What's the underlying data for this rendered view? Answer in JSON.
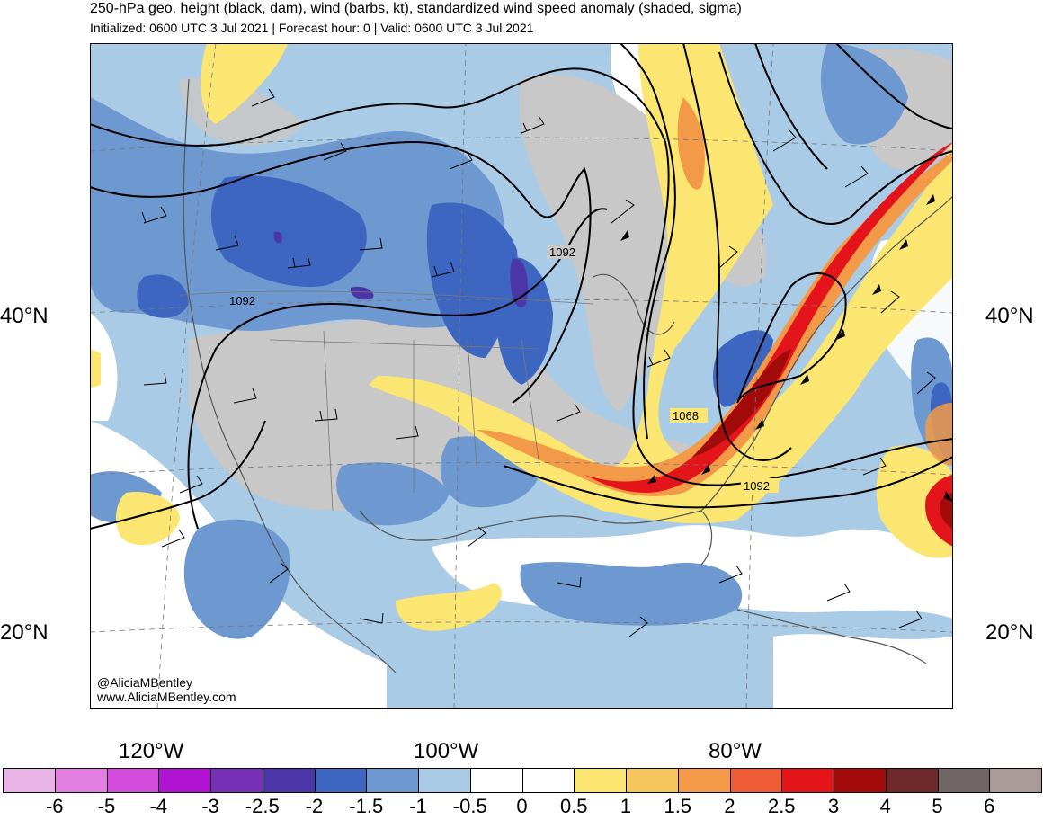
{
  "header": {
    "title": "250-hPa geo. height (black, dam), wind (barbs, kt), standardized wind speed anomaly (shaded, sigma)",
    "subtitle": "Initialized: 0600 UTC 3 Jul 2021 | Forecast hour: 0 | Valid: 0600 UTC 3 Jul 2021"
  },
  "axes": {
    "lat_labels": [
      "40°N",
      "20°N"
    ],
    "lon_labels": [
      "120°W",
      "100°W",
      "80°W"
    ]
  },
  "contour_labels": [
    "1092",
    "1092",
    "1068",
    "1092"
  ],
  "credit": {
    "handle": "@AliciaMBentley",
    "site": "www.AliciaMBentley.com"
  },
  "colorbar": {
    "colors": [
      "#e8b4e6",
      "#e27fe1",
      "#d34cdc",
      "#b013d2",
      "#7830b8",
      "#4a36a6",
      "#3d66c0",
      "#6e98d0",
      "#a9cbe6",
      "#ffffff",
      "#ffffff",
      "#fbe671",
      "#f5c65d",
      "#f29a47",
      "#ef5b35",
      "#e4141b",
      "#a30a0a",
      "#6e2a2a",
      "#736666",
      "#aa9a9a"
    ],
    "labels": [
      "-6",
      "-5",
      "-4",
      "-3",
      "-2.5",
      "-2",
      "-1.5",
      "-1",
      "-0.5",
      "0",
      "0.5",
      "1",
      "1.5",
      "2",
      "2.5",
      "3",
      "4",
      "5",
      "6"
    ]
  }
}
